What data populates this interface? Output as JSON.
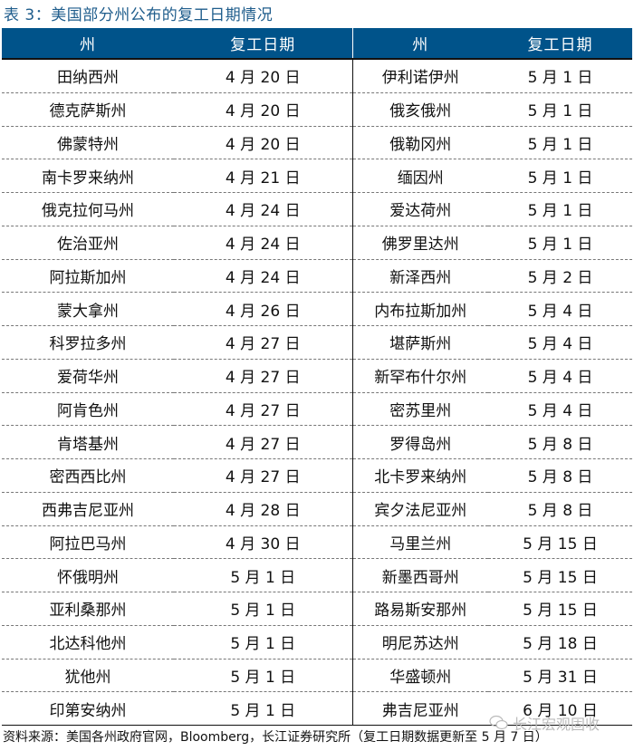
{
  "title": "表 3：美国部分州公布的复工日期情况",
  "headers": [
    "州",
    "复工日期",
    "州",
    "复工日期"
  ],
  "rows": [
    [
      "田纳西州",
      "4 月 20 日",
      "伊利诺伊州",
      "5 月 1 日"
    ],
    [
      "德克萨斯州",
      "4 月 20 日",
      "俄亥俄州",
      "5 月 1 日"
    ],
    [
      "佛蒙特州",
      "4 月 20 日",
      "俄勒冈州",
      "5 月 1 日"
    ],
    [
      "南卡罗来纳州",
      "4 月 21 日",
      "缅因州",
      "5 月 1 日"
    ],
    [
      "俄克拉何马州",
      "4 月 24 日",
      "爱达荷州",
      "5 月 1 日"
    ],
    [
      "佐治亚州",
      "4 月 24 日",
      "佛罗里达州",
      "5 月 1 日"
    ],
    [
      "阿拉斯加州",
      "4 月 24 日",
      "新泽西州",
      "5 月 2 日"
    ],
    [
      "蒙大拿州",
      "4 月 26 日",
      "内布拉斯加州",
      "5 月 4 日"
    ],
    [
      "科罗拉多州",
      "4 月 27 日",
      "堪萨斯州",
      "5 月 4 日"
    ],
    [
      "爱荷华州",
      "4 月 27 日",
      "新罕布什尔州",
      "5 月 4 日"
    ],
    [
      "阿肯色州",
      "4 月 27 日",
      "密苏里州",
      "5 月 4 日"
    ],
    [
      "肯塔基州",
      "4 月 27 日",
      "罗得岛州",
      "5 月 8 日"
    ],
    [
      "密西西比州",
      "4 月 27 日",
      "北卡罗来纳州",
      "5 月 8 日"
    ],
    [
      "西弗吉尼亚州",
      "4 月 28 日",
      "宾夕法尼亚州",
      "5 月 8 日"
    ],
    [
      "阿拉巴马州",
      "4 月 30 日",
      "马里兰州",
      "5 月 15 日"
    ],
    [
      "怀俄明州",
      "5 月 1 日",
      "新墨西哥州",
      "5 月 15 日"
    ],
    [
      "亚利桑那州",
      "5 月 1 日",
      "路易斯安那州",
      "5 月 15 日"
    ],
    [
      "北达科他州",
      "5 月 1 日",
      "明尼苏达州",
      "5 月 18 日"
    ],
    [
      "犹他州",
      "5 月 1 日",
      "华盛顿州",
      "5 月 31 日"
    ],
    [
      "印第安纳州",
      "5 月 1 日",
      "弗吉尼亚州",
      "6 月 10 日"
    ]
  ],
  "source": "资料来源：美国各州政府官网，Bloomberg，长江证券研究所（复工日期数据更新至 5 月 7 日）",
  "watermark": "长江宏观固收",
  "colors": {
    "header_bg": "#00538a",
    "title": "#1f5d8c"
  }
}
